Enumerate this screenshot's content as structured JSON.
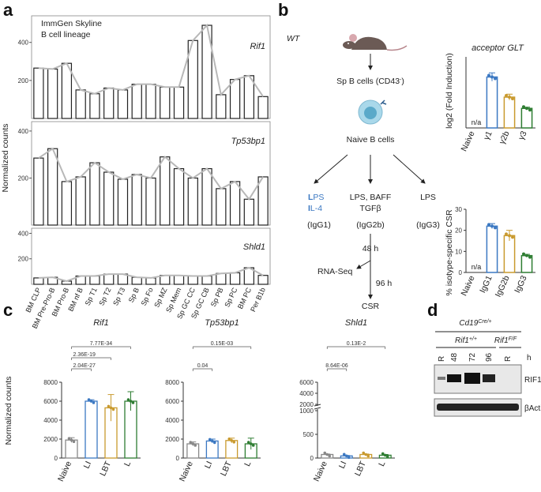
{
  "colors": {
    "naive": "#888888",
    "igg1": "#3b78c2",
    "igg2b": "#c99a2e",
    "igg3": "#2e7d32",
    "line": "#b8b8b8"
  },
  "panels": {
    "a": "a",
    "b": "b",
    "c": "c",
    "d": "d"
  },
  "a": {
    "title_line1": "ImmGen Skyline",
    "title_line2": "B cell lineage",
    "ylabel": "Normalized counts",
    "categories": [
      "BM CLP",
      "BM Pre-Pro-B",
      "BM Pro-B",
      "BM nf B",
      "Sp T1",
      "Sp T2",
      "Sp T3",
      "Sp B",
      "Sp Fo",
      "Sp MZ",
      "Sp Mem",
      "Sp GC CC",
      "Sp GC CB",
      "Sp PB",
      "Sp PC",
      "BM PC",
      "Per B1b"
    ]
  },
  "b": {
    "wt": "WT",
    "sp_b_cells": "Sp B cells (CD43",
    "sp_b_sup": "-",
    "sp_b_close": ")",
    "naive_b": "Naive B cells",
    "cond1_line1_bold": "L",
    "cond1_line1_rest": "PS",
    "cond1_line2_bold": "I",
    "cond1_line2_rest": "L-4",
    "cond2_line1": "LPS, BAFF",
    "cond2_line2": "TGFβ",
    "cond3": "LPS",
    "iso1": "(IgG1)",
    "iso2": "(IgG2b)",
    "iso3": "(IgG3)",
    "h48": "48 h",
    "rnaseq": "RNA-Seq",
    "h96": "96 h",
    "csr": "CSR",
    "glt_title": "acceptor GLT",
    "glt_ylabel": "log2 (Fold Induction)",
    "csr_ylabel": "% isotype-specific CSR",
    "na": "n/a",
    "glt_xlabels": [
      "Naive",
      "γ1",
      "γ2b",
      "γ3"
    ],
    "csr_xlabels": [
      "Naive",
      "IgG1",
      "IgG2b",
      "IgG3"
    ]
  },
  "c": {
    "ylabel": "Normalized counts",
    "xlabels": [
      "Naive",
      "LI",
      "LBT",
      "L"
    ],
    "genes": [
      "Rif1",
      "Tp53bp1",
      "Shld1"
    ],
    "rif1_pvals": [
      "2.04E-27",
      "2.36E-19",
      "7.77E-34"
    ],
    "tp53bp1_pvals": [
      "0.04",
      "0.15E-03"
    ],
    "shld1_pvals": [
      "8.64E-06",
      "0.13E-2"
    ]
  },
  "d": {
    "genotype": "Cd19",
    "genotype_sup": "Cre/+",
    "rif1wt": "Rif1",
    "rif1wt_sup": "+/+",
    "rif1ff": "Rif1",
    "rif1ff_sup": "F/F",
    "lanes": [
      "R",
      "48",
      "72",
      "96",
      "R"
    ],
    "h": "h",
    "band1": "RIF1",
    "band2": "βActin"
  },
  "chart_data": [
    {
      "type": "bar",
      "title": "Rif1",
      "ylabel": "Normalized counts",
      "categories": [
        "BM CLP",
        "BM Pre-Pro-B",
        "BM Pro-B",
        "BM nf B",
        "Sp T1",
        "Sp T2",
        "Sp T3",
        "Sp B",
        "Sp Fo",
        "Sp MZ",
        "Sp Mem",
        "Sp GC CC",
        "Sp GC CB",
        "Sp PB",
        "Sp PC",
        "BM PC",
        "Per B1b"
      ],
      "values": [
        265,
        260,
        290,
        150,
        130,
        160,
        150,
        180,
        180,
        165,
        165,
        410,
        490,
        125,
        205,
        225,
        115
      ],
      "yticks": [
        200,
        400
      ],
      "ylim": [
        0,
        540
      ]
    },
    {
      "type": "bar",
      "title": "Tp53bp1",
      "categories": [
        "BM CLP",
        "BM Pre-Pro-B",
        "BM Pro-B",
        "BM nf B",
        "Sp T1",
        "Sp T2",
        "Sp T3",
        "Sp B",
        "Sp Fo",
        "Sp MZ",
        "Sp Mem",
        "Sp GC CC",
        "Sp GC CB",
        "Sp PB",
        "Sp PC",
        "BM PC",
        "Per B1b"
      ],
      "values": [
        285,
        325,
        185,
        205,
        265,
        225,
        195,
        215,
        200,
        290,
        240,
        200,
        240,
        155,
        185,
        110,
        205
      ],
      "yticks": [
        200,
        400
      ],
      "ylim": [
        0,
        440
      ]
    },
    {
      "type": "bar",
      "title": "Shld1",
      "categories": [
        "BM CLP",
        "BM Pre-Pro-B",
        "BM Pro-B",
        "BM nf B",
        "Sp T1",
        "Sp T2",
        "Sp T3",
        "Sp B",
        "Sp Fo",
        "Sp MZ",
        "Sp Mem",
        "Sp GC CC",
        "Sp GC CB",
        "Sp PB",
        "Sp PC",
        "BM PC",
        "Per B1b"
      ],
      "values": [
        50,
        55,
        25,
        65,
        65,
        80,
        80,
        55,
        50,
        70,
        70,
        65,
        65,
        85,
        90,
        130,
        70
      ],
      "yticks": [
        200,
        400
      ],
      "ylim": [
        0,
        440
      ]
    },
    {
      "type": "bar",
      "title": "acceptor GLT",
      "ylabel": "log2 (Fold Induction)",
      "categories": [
        "Naive",
        "γ1",
        "γ2b",
        "γ3"
      ],
      "values": [
        0,
        8.6,
        5.2,
        3.3
      ],
      "errors": [
        0,
        0.7,
        0.5,
        0.2
      ],
      "ylim": [
        0,
        12
      ]
    },
    {
      "type": "bar",
      "ylabel": "% isotype-specific CSR",
      "categories": [
        "Naive",
        "IgG1",
        "IgG2b",
        "IgG3"
      ],
      "values": [
        0,
        22,
        17.5,
        8
      ],
      "errors": [
        0,
        1.2,
        2.5,
        0.6
      ],
      "yticks": [
        0,
        10,
        20,
        30
      ],
      "ylim": [
        0,
        30
      ]
    },
    {
      "type": "bar",
      "title": "Rif1",
      "ylabel": "Normalized counts",
      "categories": [
        "Naive",
        "LI",
        "LBT",
        "L"
      ],
      "values": [
        1900,
        6000,
        5300,
        6000
      ],
      "errors": [
        250,
        150,
        1400,
        1000
      ],
      "yticks": [
        0,
        2000,
        4000,
        6000,
        8000
      ],
      "ylim": [
        0,
        8000
      ]
    },
    {
      "type": "bar",
      "title": "Tp53bp1",
      "categories": [
        "Naive",
        "LI",
        "LBT",
        "L"
      ],
      "values": [
        1500,
        1800,
        1850,
        1500
      ],
      "errors": [
        200,
        200,
        250,
        600
      ],
      "yticks": [
        0,
        2000,
        4000,
        6000,
        8000
      ],
      "ylim": [
        0,
        8000
      ]
    },
    {
      "type": "bar",
      "title": "Shld1",
      "categories": [
        "Naive",
        "LI",
        "LBT",
        "L"
      ],
      "values": [
        75,
        45,
        75,
        60
      ],
      "errors": [
        10,
        10,
        10,
        15
      ],
      "yticks": [
        0,
        500,
        1000,
        2000,
        4000,
        6000
      ],
      "ylim": [
        0,
        6000
      ]
    }
  ]
}
